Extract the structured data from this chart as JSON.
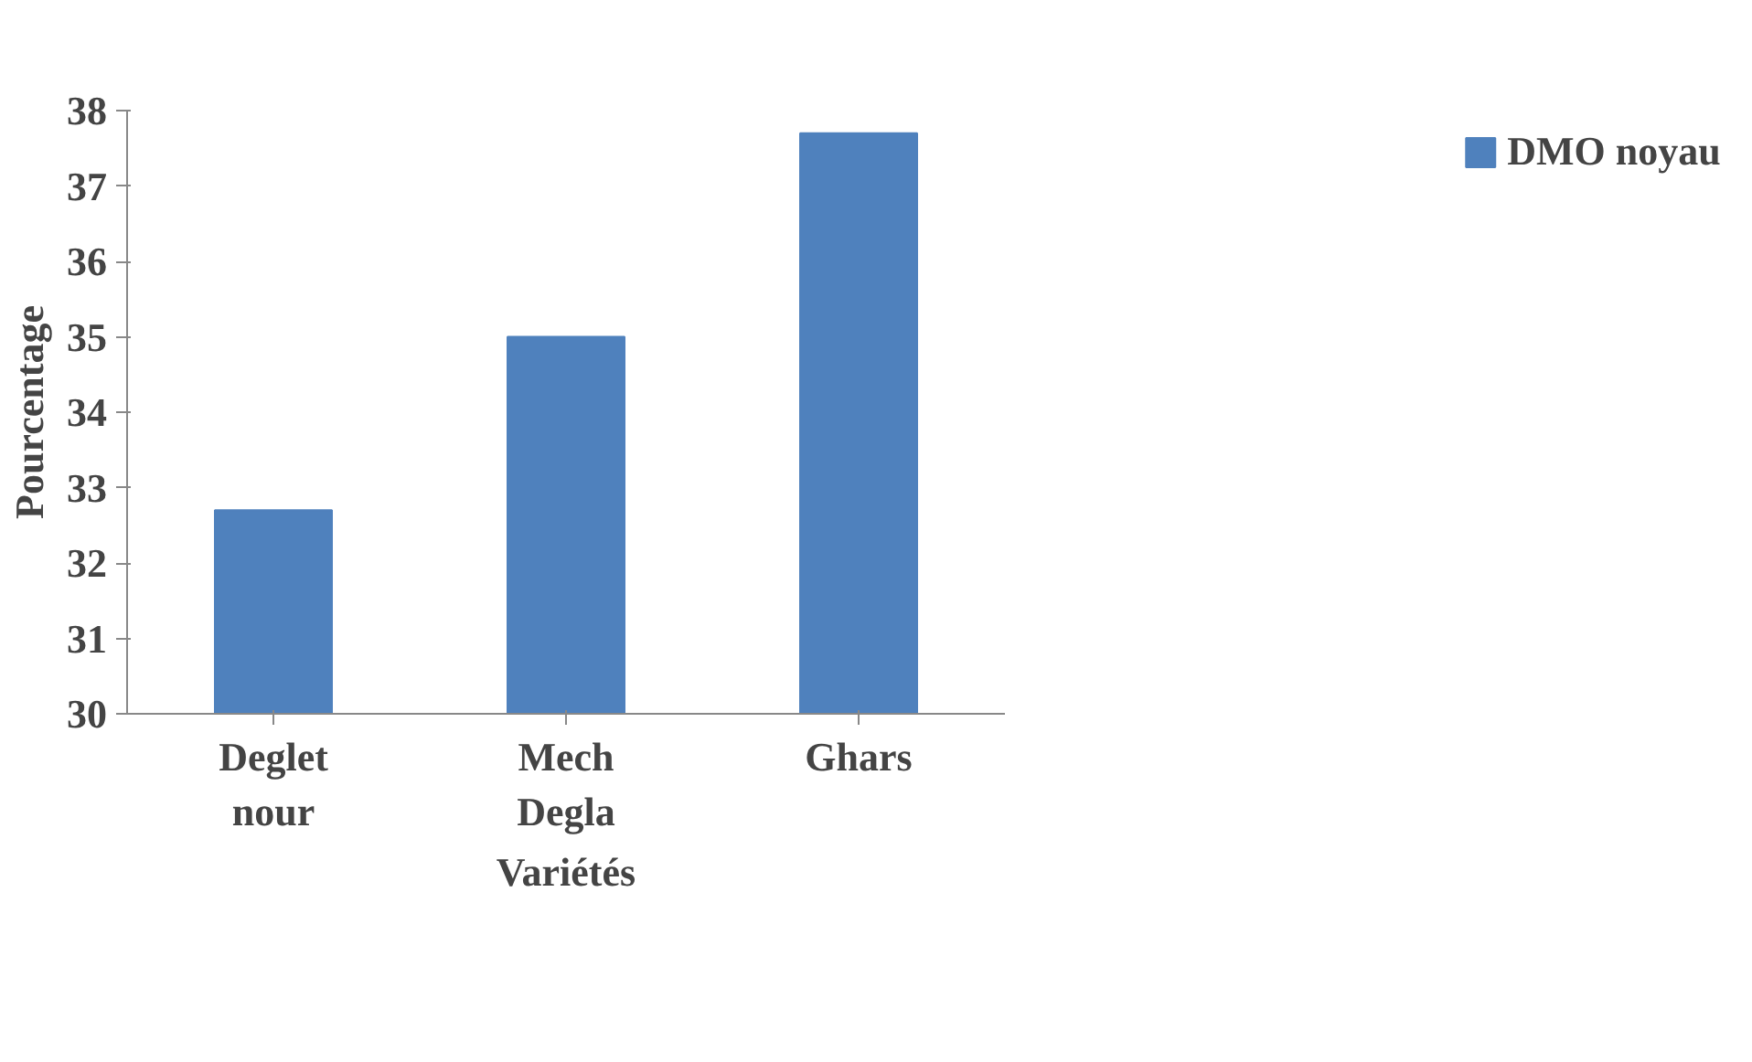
{
  "chart_data": {
    "type": "bar",
    "xlabel": "Variétés",
    "ylabel": "Pourcentage",
    "categories": [
      "Deglet nour",
      "Mech Degla",
      "Ghars"
    ],
    "series": [
      {
        "name": "DMO noyau",
        "color": "#4f81bd",
        "values": [
          32.7,
          35.0,
          37.7
        ]
      }
    ],
    "ylim": [
      30,
      38
    ],
    "yticks": [
      30,
      31,
      32,
      33,
      34,
      35,
      36,
      37,
      38
    ],
    "grid": false,
    "legend": "top right"
  }
}
